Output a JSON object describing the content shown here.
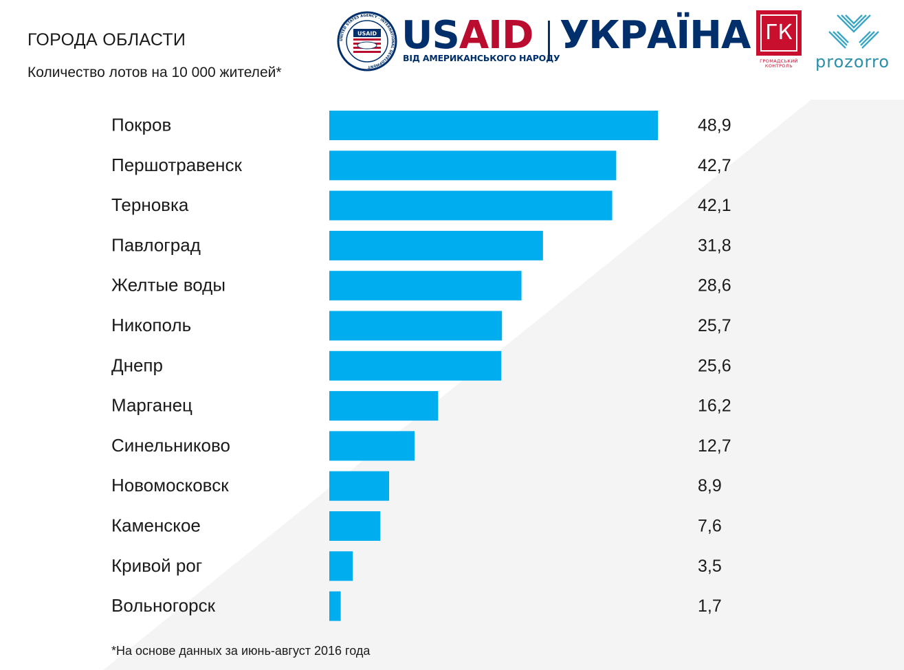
{
  "header": {
    "title": "ГОРОДА ОБЛАСТИ",
    "subtitle": "Количество лотов на 10 000 жителей*"
  },
  "logos": {
    "usaid_us": "US",
    "usaid_aid": "AID",
    "usaid_tagline": "ВІД АМЕРИКАНСЬКОГО НАРОДУ",
    "usaid_seal_ring": "UNITED STATES AGENCY · INTERNATIONAL DEVELOPMENT",
    "usaid_seal_label": "USAID",
    "ukraina": "УКРАЇНА",
    "gk_mark": "ГК",
    "gk_tagline_1": "ГРОМАДСЬКИЙ",
    "gk_tagline_2": "КОНТРОЛЬ",
    "prozorro": "prozorro"
  },
  "footnote": "*На основе данных за июнь-август 2016 года",
  "colors": {
    "bar": "#00aeef",
    "background_band": "#f4f4f5",
    "text": "#1a1a1a"
  },
  "chart_data": {
    "type": "bar",
    "orientation": "horizontal",
    "title": "ГОРОДА ОБЛАСТИ",
    "subtitle": "Количество лотов на 10 000 жителей*",
    "categories": [
      "Покров",
      "Першотравенск",
      "Терновка",
      "Павлоград",
      "Желтые воды",
      "Никополь",
      "Днепр",
      "Марганец",
      "Синельниково",
      "Новомосковск",
      "Каменское",
      "Кривой рог",
      "Вольногорск"
    ],
    "values": [
      48.9,
      42.7,
      42.1,
      31.8,
      28.6,
      25.7,
      25.6,
      16.2,
      12.7,
      8.9,
      7.6,
      3.5,
      1.7
    ],
    "value_labels": [
      "48,9",
      "42,7",
      "42,1",
      "31,8",
      "28,6",
      "25,7",
      "25,6",
      "16,2",
      "12,7",
      "8,9",
      "7,6",
      "3,5",
      "1,7"
    ],
    "xlim": [
      0,
      48.9
    ],
    "grid": false,
    "legend": "none",
    "axes_visible": false
  }
}
